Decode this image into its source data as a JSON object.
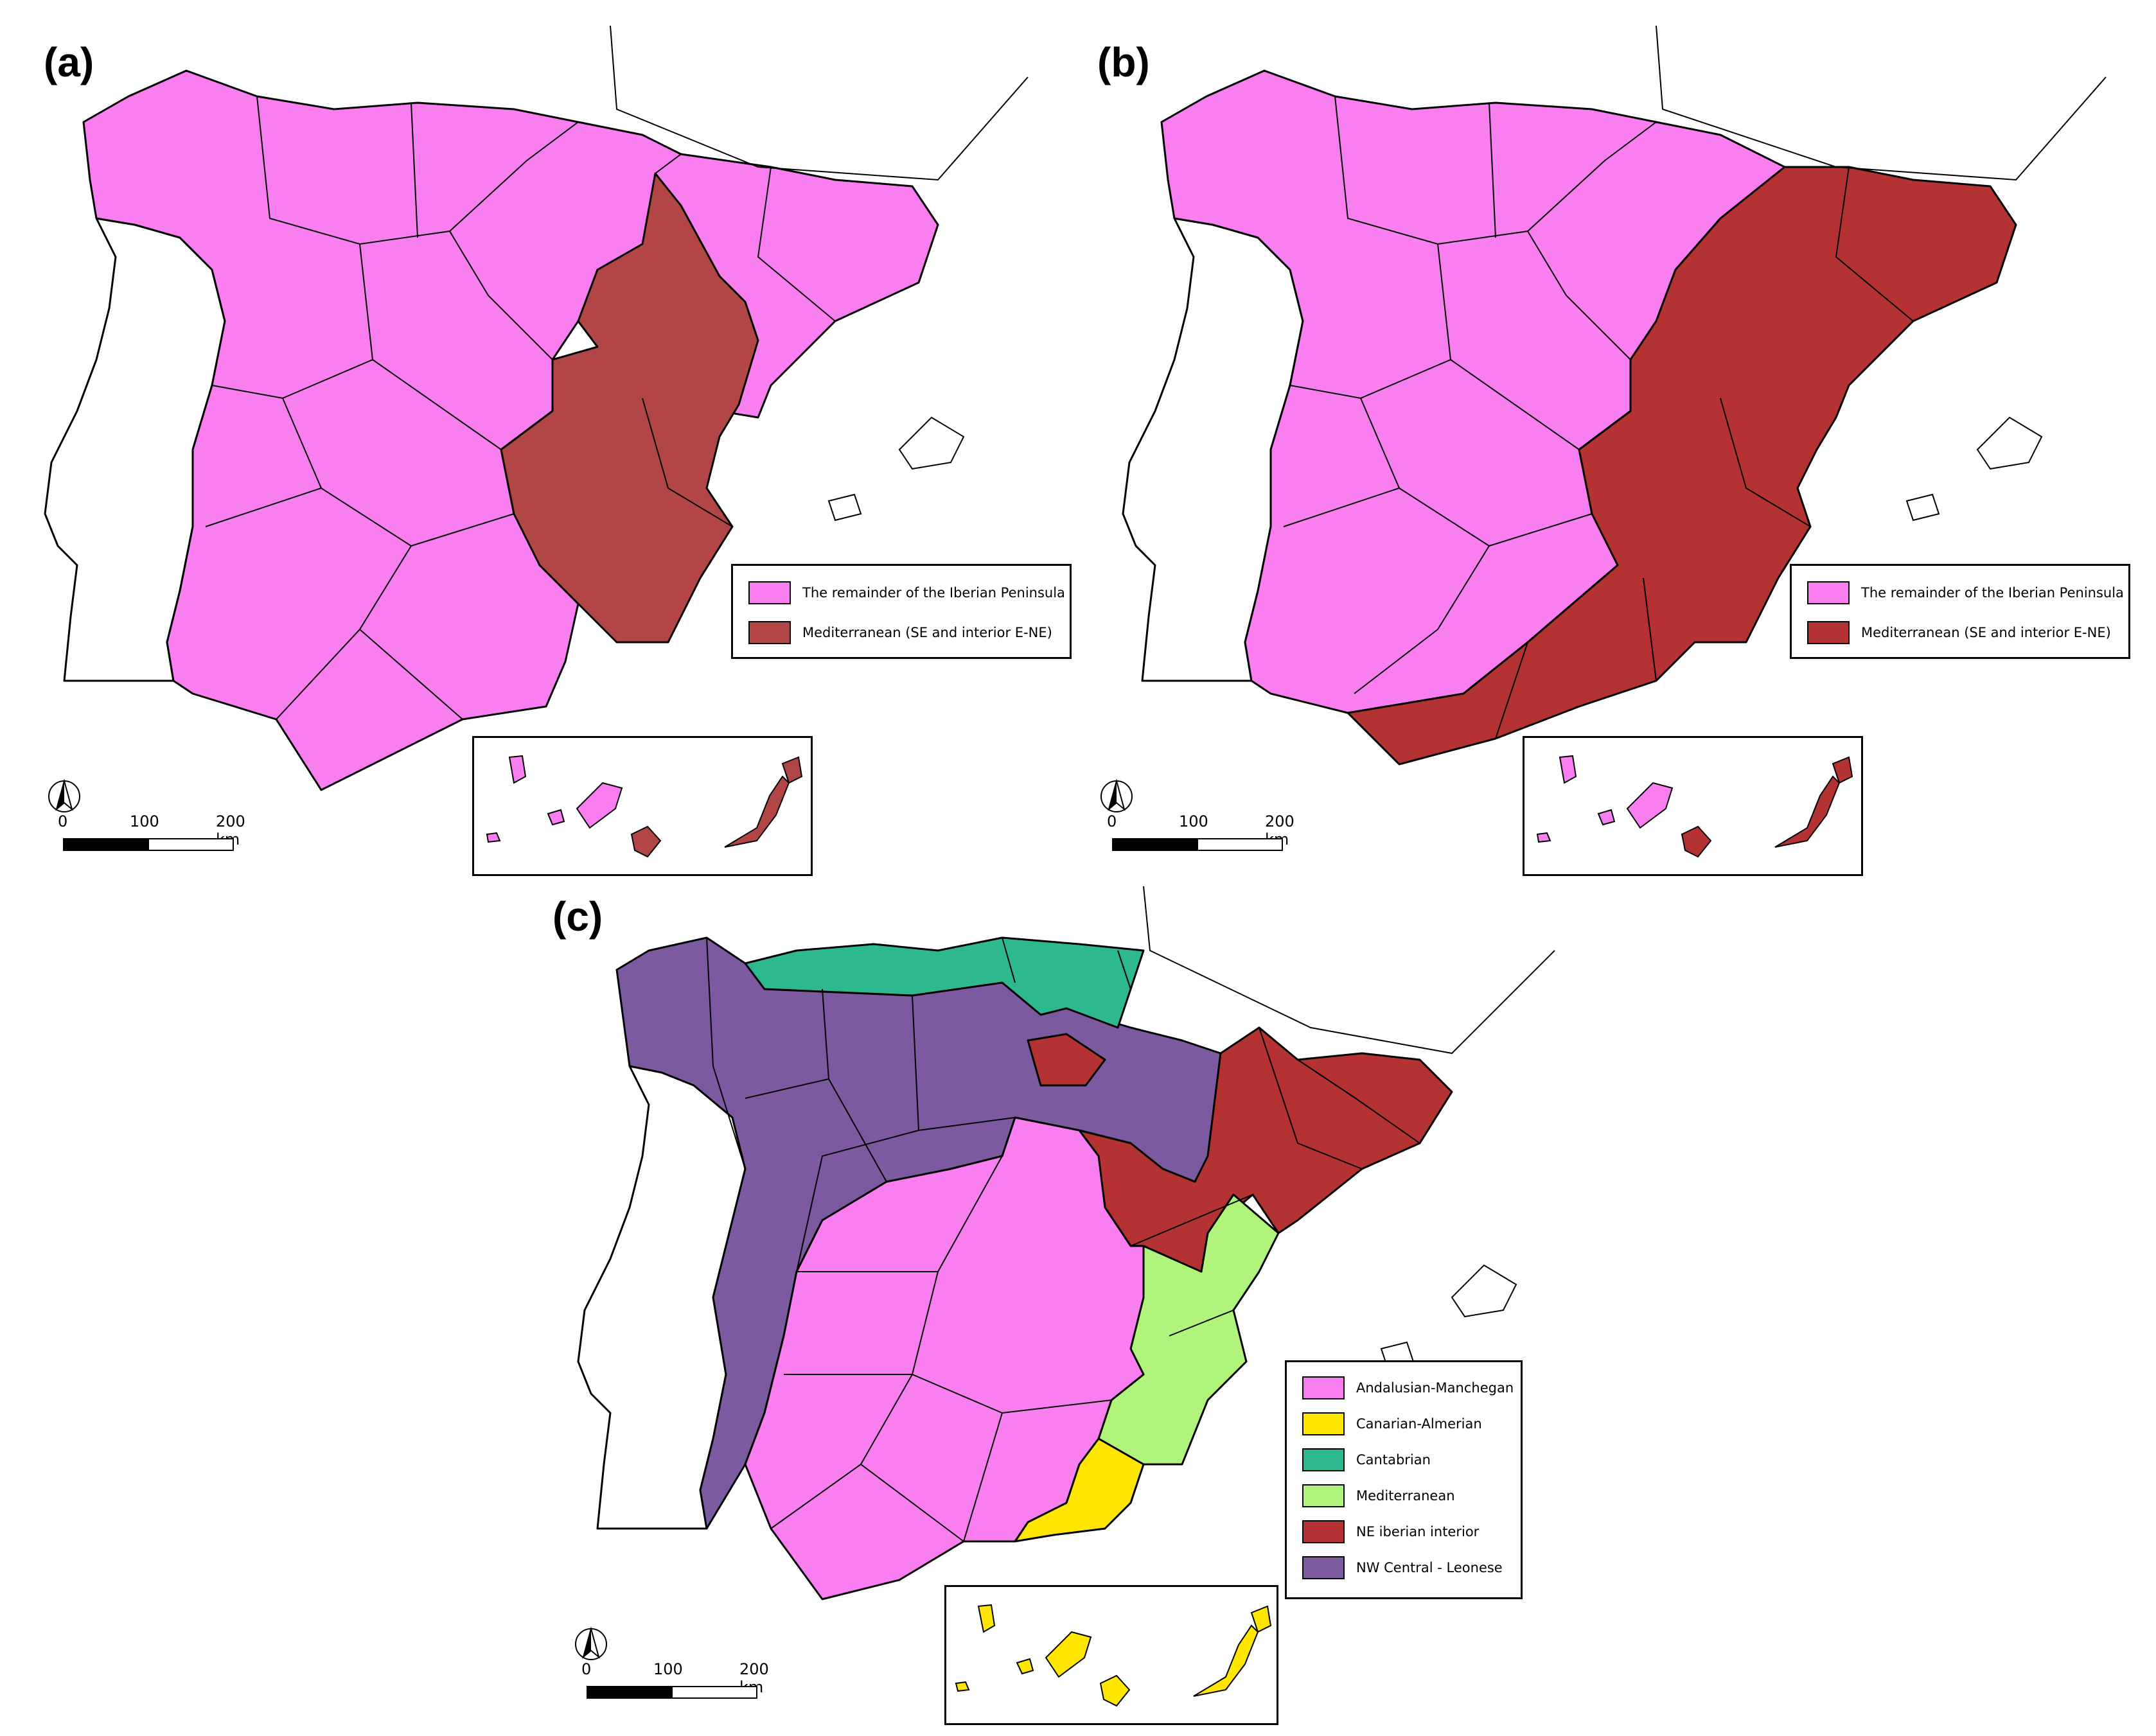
{
  "panels": [
    {
      "label": "(a)",
      "legend": [
        {
          "text": "The remainder of the Iberian Peninsula",
          "color": "#f97ef0"
        },
        {
          "text": "Mediterranean (SE and interior E-NE)",
          "color": "#b24646"
        }
      ]
    },
    {
      "label": "(b)",
      "legend": [
        {
          "text": "The remainder of the Iberian Peninsula",
          "color": "#f97ef0"
        },
        {
          "text": "Mediterranean (SE and interior E-NE)",
          "color": "#b53232"
        }
      ]
    },
    {
      "label": "(c)",
      "legend": [
        {
          "text": "Andalusian-Manchegan",
          "color": "#f97ef0"
        },
        {
          "text": "Canarian-Almerian",
          "color": "#ffe600"
        },
        {
          "text": "Cantabrian",
          "color": "#2db88f"
        },
        {
          "text": "Mediterranean",
          "color": "#b0f47c"
        },
        {
          "text": "NE iberian interior",
          "color": "#b53232"
        },
        {
          "text": "NW Central - Leonese",
          "color": "#7c5aa0"
        }
      ]
    }
  ],
  "scale_bar": {
    "tick_0": "0",
    "tick_1": "100",
    "tick_2": "200 km"
  },
  "icons": {
    "north_arrow": "north-arrow-icon"
  }
}
